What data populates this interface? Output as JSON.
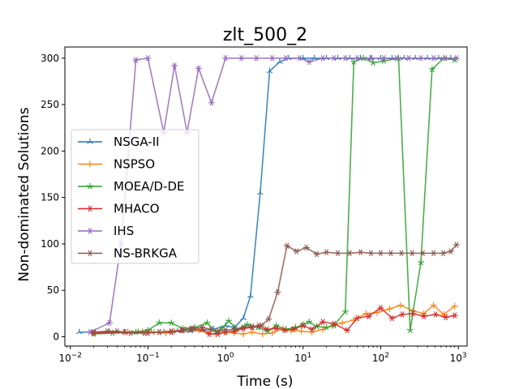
{
  "chart_data": {
    "type": "line",
    "title": "zlt_500_2",
    "xlabel": "Time (s)",
    "ylabel": "Non-dominated Solutions",
    "xscale": "log",
    "xlim": [
      0.0085,
      1300
    ],
    "ylim": [
      -10,
      312
    ],
    "x_ticks": [
      {
        "value": 0.01,
        "base": "10",
        "exp": "−2"
      },
      {
        "value": 0.1,
        "base": "10",
        "exp": "−1"
      },
      {
        "value": 1,
        "base": "10",
        "exp": "0"
      },
      {
        "value": 10,
        "base": "10",
        "exp": "1"
      },
      {
        "value": 100,
        "base": "10",
        "exp": "2"
      },
      {
        "value": 1000,
        "base": "10",
        "exp": "3"
      }
    ],
    "y_ticks": [
      0,
      50,
      100,
      150,
      200,
      250,
      300
    ],
    "grid": false,
    "legend_position": "center-left",
    "series": [
      {
        "name": "NSGA-II",
        "color": "#1f77b4",
        "marker": "tri",
        "points": [
          [
            0.013,
            5
          ],
          [
            0.021,
            5
          ],
          [
            0.032,
            5
          ],
          [
            0.05,
            5
          ],
          [
            0.075,
            5
          ],
          [
            0.11,
            5
          ],
          [
            0.16,
            5
          ],
          [
            0.24,
            6
          ],
          [
            0.35,
            6
          ],
          [
            0.5,
            7
          ],
          [
            0.7,
            8
          ],
          [
            1.0,
            12
          ],
          [
            1.3,
            10
          ],
          [
            1.7,
            20
          ],
          [
            2.1,
            44
          ],
          [
            2.8,
            155
          ],
          [
            3.7,
            286
          ],
          [
            5.0,
            296
          ],
          [
            6.5,
            300
          ],
          [
            10,
            300
          ],
          [
            14,
            300
          ],
          [
            20,
            300
          ],
          [
            28,
            300
          ],
          [
            40,
            300
          ],
          [
            55,
            300
          ],
          [
            75,
            300
          ],
          [
            100,
            300
          ],
          [
            140,
            300
          ],
          [
            200,
            300
          ],
          [
            280,
            300
          ],
          [
            400,
            300
          ],
          [
            560,
            300
          ],
          [
            800,
            300
          ]
        ]
      },
      {
        "name": "NSPSO",
        "color": "#ff7f0e",
        "marker": "plus",
        "points": [
          [
            0.02,
            4
          ],
          [
            0.055,
            5
          ],
          [
            0.085,
            6
          ],
          [
            0.12,
            5
          ],
          [
            0.17,
            4
          ],
          [
            0.22,
            6
          ],
          [
            0.3,
            8
          ],
          [
            0.45,
            7
          ],
          [
            0.6,
            4
          ],
          [
            0.75,
            3
          ],
          [
            1.0,
            5
          ],
          [
            1.3,
            4
          ],
          [
            1.7,
            3
          ],
          [
            2.2,
            5
          ],
          [
            3.0,
            3
          ],
          [
            4.0,
            4
          ],
          [
            5.5,
            9
          ],
          [
            7.0,
            7
          ],
          [
            9.5,
            6
          ],
          [
            13,
            5
          ],
          [
            18,
            8
          ],
          [
            24,
            12
          ],
          [
            32,
            15
          ],
          [
            45,
            18
          ],
          [
            65,
            25
          ],
          [
            90,
            26
          ],
          [
            130,
            30
          ],
          [
            180,
            34
          ],
          [
            260,
            28
          ],
          [
            360,
            25
          ],
          [
            480,
            34
          ],
          [
            650,
            24
          ],
          [
            900,
            33
          ]
        ]
      },
      {
        "name": "MOEA/D-DE",
        "color": "#2ca02c",
        "marker": "star",
        "points": [
          [
            0.02,
            3
          ],
          [
            0.035,
            4
          ],
          [
            0.07,
            5
          ],
          [
            0.1,
            7
          ],
          [
            0.14,
            15
          ],
          [
            0.2,
            15
          ],
          [
            0.28,
            9
          ],
          [
            0.4,
            10
          ],
          [
            0.58,
            15
          ],
          [
            0.75,
            5
          ],
          [
            0.9,
            9
          ],
          [
            1.1,
            17
          ],
          [
            1.4,
            8
          ],
          [
            1.9,
            13
          ],
          [
            2.6,
            10
          ],
          [
            3.5,
            6
          ],
          [
            4.5,
            12
          ],
          [
            6.0,
            8
          ],
          [
            8.0,
            10
          ],
          [
            10,
            13
          ],
          [
            12,
            16
          ],
          [
            15,
            11
          ],
          [
            20,
            10
          ],
          [
            25,
            12
          ],
          [
            35,
            27
          ],
          [
            45,
            296
          ],
          [
            60,
            300
          ],
          [
            80,
            295
          ],
          [
            110,
            297
          ],
          [
            170,
            300
          ],
          [
            240,
            7
          ],
          [
            330,
            80
          ],
          [
            460,
            288
          ],
          [
            650,
            300
          ],
          [
            900,
            298
          ]
        ]
      },
      {
        "name": "MHACO",
        "color": "#d62728",
        "marker": "asterisk",
        "points": [
          [
            0.02,
            4
          ],
          [
            0.05,
            5
          ],
          [
            0.1,
            4
          ],
          [
            0.14,
            5
          ],
          [
            0.2,
            5
          ],
          [
            0.27,
            7
          ],
          [
            0.36,
            8
          ],
          [
            0.5,
            8
          ],
          [
            0.62,
            3
          ],
          [
            0.8,
            3
          ],
          [
            1.0,
            5
          ],
          [
            1.3,
            6
          ],
          [
            1.7,
            9
          ],
          [
            2.2,
            10
          ],
          [
            2.7,
            12
          ],
          [
            3.4,
            8
          ],
          [
            4.5,
            9
          ],
          [
            5.8,
            7
          ],
          [
            7.5,
            8
          ],
          [
            10,
            12
          ],
          [
            13,
            8
          ],
          [
            18,
            16
          ],
          [
            25,
            14
          ],
          [
            37,
            7
          ],
          [
            50,
            20
          ],
          [
            70,
            22
          ],
          [
            100,
            31
          ],
          [
            140,
            20
          ],
          [
            190,
            24
          ],
          [
            260,
            25
          ],
          [
            360,
            22
          ],
          [
            510,
            24
          ],
          [
            690,
            21
          ],
          [
            900,
            23
          ]
        ]
      },
      {
        "name": "IHS",
        "color": "#9467bd",
        "marker": "asterisk",
        "points": [
          [
            0.018,
            5
          ],
          [
            0.032,
            15
          ],
          [
            0.045,
            100
          ],
          [
            0.07,
            298
          ],
          [
            0.1,
            300
          ],
          [
            0.16,
            220
          ],
          [
            0.22,
            292
          ],
          [
            0.32,
            220
          ],
          [
            0.45,
            289
          ],
          [
            0.66,
            252
          ],
          [
            1.0,
            300
          ],
          [
            1.6,
            300
          ],
          [
            2.5,
            300
          ],
          [
            4.0,
            300
          ],
          [
            6.0,
            300
          ],
          [
            9,
            300
          ],
          [
            12,
            296
          ],
          [
            18,
            300
          ],
          [
            25,
            300
          ],
          [
            35,
            300
          ],
          [
            50,
            300
          ],
          [
            75,
            300
          ],
          [
            110,
            300
          ],
          [
            160,
            300
          ],
          [
            230,
            300
          ],
          [
            330,
            300
          ],
          [
            480,
            300
          ],
          [
            680,
            300
          ],
          [
            950,
            300
          ]
        ]
      },
      {
        "name": "NS-BRKGA",
        "color": "#8c564b",
        "marker": "asterisk",
        "points": [
          [
            0.02,
            5
          ],
          [
            0.03,
            6
          ],
          [
            0.04,
            6
          ],
          [
            0.06,
            4
          ],
          [
            0.09,
            4
          ],
          [
            0.14,
            5
          ],
          [
            0.2,
            6
          ],
          [
            0.28,
            7
          ],
          [
            0.37,
            9
          ],
          [
            0.5,
            10
          ],
          [
            0.65,
            8
          ],
          [
            0.82,
            6
          ],
          [
            1.0,
            7
          ],
          [
            1.3,
            8
          ],
          [
            1.7,
            10
          ],
          [
            2.2,
            11
          ],
          [
            2.9,
            12
          ],
          [
            3.6,
            19
          ],
          [
            4.7,
            48
          ],
          [
            6.2,
            98
          ],
          [
            8.2,
            92
          ],
          [
            11,
            96
          ],
          [
            15,
            89
          ],
          [
            20,
            91
          ],
          [
            28,
            90
          ],
          [
            40,
            90
          ],
          [
            55,
            91
          ],
          [
            75,
            90
          ],
          [
            100,
            90
          ],
          [
            135,
            90
          ],
          [
            185,
            90
          ],
          [
            255,
            90
          ],
          [
            350,
            90
          ],
          [
            480,
            90
          ],
          [
            640,
            90
          ],
          [
            800,
            92
          ],
          [
            950,
            99
          ]
        ]
      }
    ]
  }
}
